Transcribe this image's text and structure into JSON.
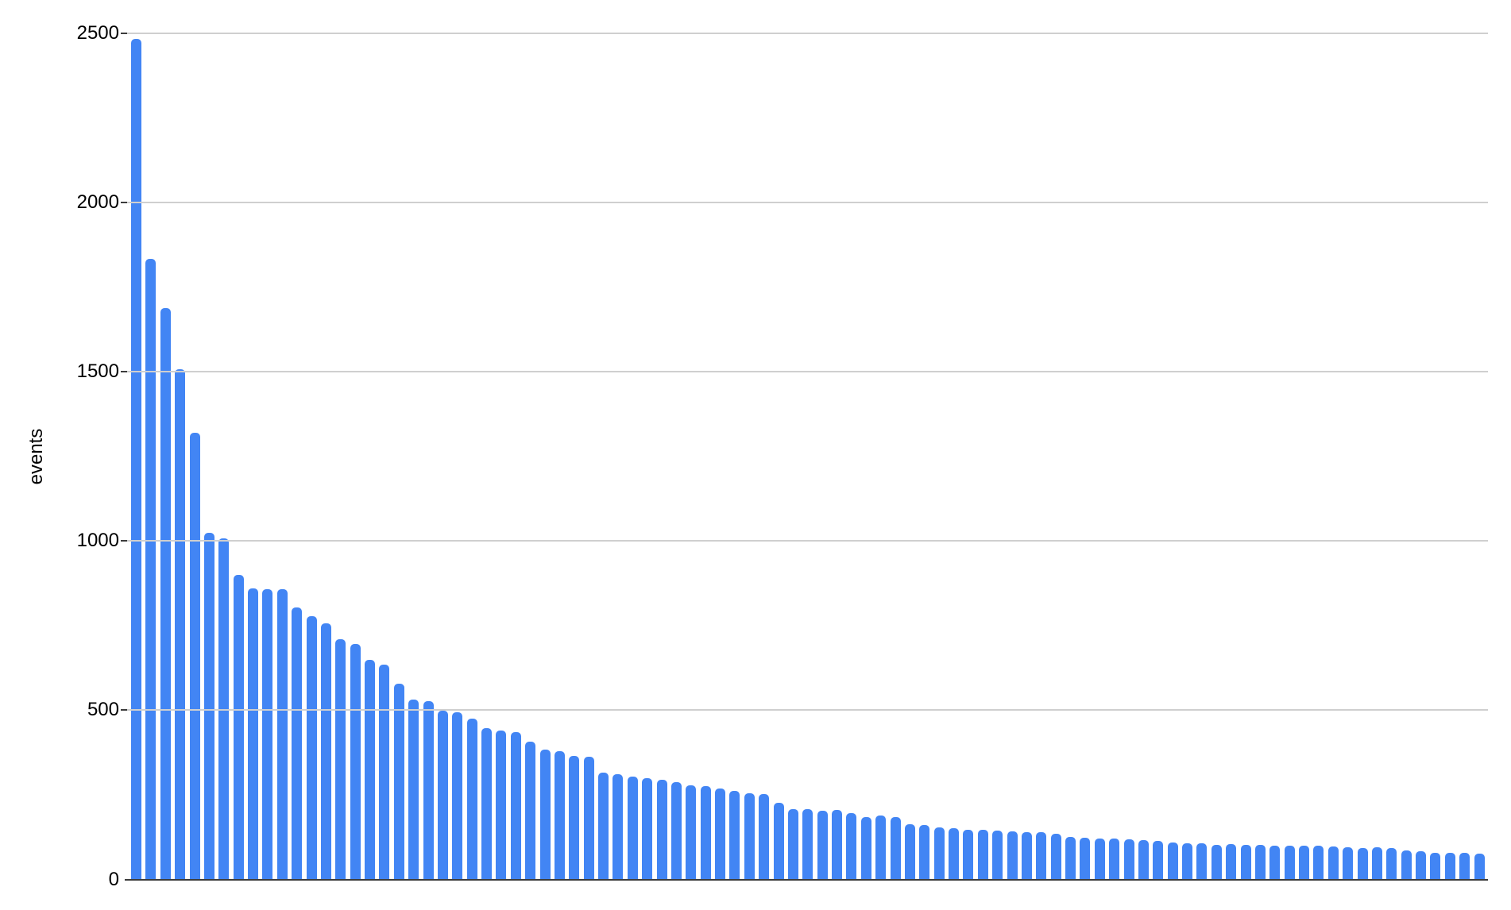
{
  "chart_data": {
    "type": "bar",
    "title": "",
    "xlabel": "",
    "ylabel": "events",
    "ylim": [
      0,
      2500
    ],
    "y_ticks": [
      0,
      500,
      1000,
      1500,
      2000,
      2500
    ],
    "y_tick_labels": [
      "0",
      "500",
      "1000",
      "1500",
      "2000",
      "2500"
    ],
    "x_tick_labels_visible": false,
    "grid": true,
    "legend": false,
    "bar_count": 93,
    "values": [
      2485,
      1835,
      1690,
      1508,
      1322,
      1026,
      1009,
      900,
      862,
      858,
      858,
      806,
      778,
      759,
      712,
      698,
      650,
      636,
      579,
      532,
      527,
      500,
      495,
      477,
      449,
      442,
      436,
      408,
      386,
      381,
      367,
      364,
      316,
      312,
      306,
      300,
      296,
      289,
      279,
      278,
      271,
      262,
      256,
      254,
      227,
      208,
      209,
      205,
      206,
      197,
      186,
      189,
      186,
      165,
      163,
      154,
      153,
      149,
      148,
      145,
      144,
      142,
      140,
      137,
      127,
      124,
      123,
      121,
      120,
      117,
      114,
      111,
      109,
      107,
      104,
      105,
      104,
      104,
      102,
      102,
      102,
      100,
      99,
      97,
      95,
      97,
      93,
      87,
      85,
      81,
      80,
      79,
      78
    ]
  },
  "colors": {
    "bar": "#4285f4",
    "gridline": "#cfcfcf",
    "axis": "#3c3c3c",
    "label": "#000000",
    "background": "#ffffff"
  }
}
